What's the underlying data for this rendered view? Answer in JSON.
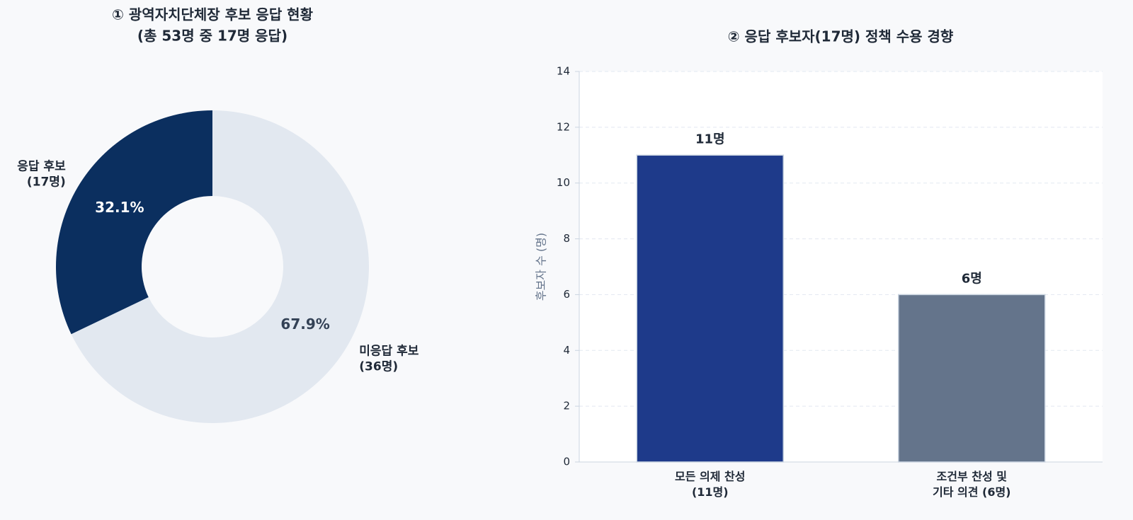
{
  "chart_data": [
    {
      "type": "pie",
      "title": [
        "① 광역자치단체장 후보 응답 현황",
        "(총 53명 중 17명 응답)"
      ],
      "categories": [
        "응답 후보\n(17명)",
        "미응답 후보\n(36명)"
      ],
      "values": [
        32.1,
        67.9
      ],
      "value_labels": [
        "32.1%",
        "67.9%"
      ],
      "colors": [
        "#0b2f5f",
        "#e2e8f0"
      ]
    },
    {
      "type": "bar",
      "title": "② 응답 후보자(17명) 정책 수용 경향",
      "ylabel": "후보자 수 (명)",
      "categories": [
        "모든 의제 찬성\n(11명)",
        "조건부 찬성 및\n기타 의견 (6명)"
      ],
      "values": [
        11,
        6
      ],
      "value_labels": [
        "11명",
        "6명"
      ],
      "colors": [
        "#1e3a8a",
        "#64748b"
      ],
      "ylim": [
        0,
        14
      ],
      "yticks": [
        0,
        2,
        4,
        6,
        8,
        10,
        12,
        14
      ],
      "grid": true
    }
  ]
}
